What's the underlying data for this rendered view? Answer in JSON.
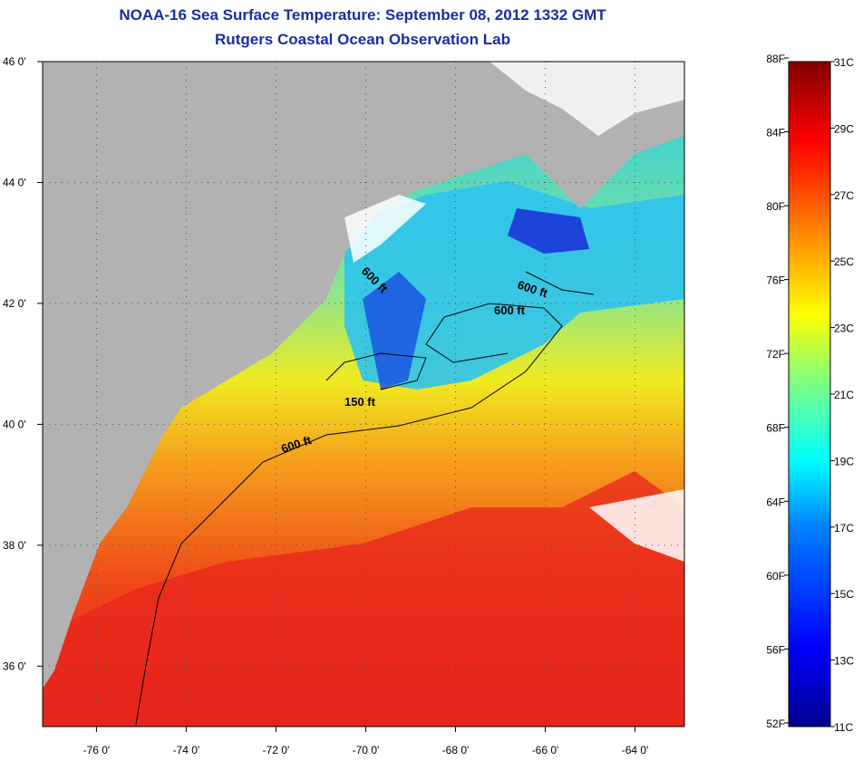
{
  "title": "NOAA-16 Sea Surface Temperature:  September 08, 2012 1332 GMT",
  "subtitle": "Rutgers Coastal Ocean Observation Lab",
  "map": {
    "lat_labels": [
      "46 0'",
      "44 0'",
      "42 0'",
      "40 0'",
      "38 0'",
      "36 0'"
    ],
    "lat_values": [
      46,
      44,
      42,
      40,
      38,
      36
    ],
    "lon_labels": [
      "-76 0'",
      "-74 0'",
      "-72 0'",
      "-70 0'",
      "-68 0'",
      "-66 0'",
      "-64 0'"
    ],
    "lon_values": [
      -76,
      -74,
      -72,
      -70,
      -68,
      -66,
      -64
    ],
    "lat_range": [
      35,
      46
    ],
    "lon_range": [
      -77.2,
      -62.9
    ],
    "contours": [
      {
        "label": "600 ft"
      },
      {
        "label": "600 ft"
      },
      {
        "label": "600 ft"
      },
      {
        "label": "150 ft"
      },
      {
        "label": "600 ft"
      }
    ],
    "colors": {
      "land": "#b2b2b2",
      "cloud": "#ffffff",
      "title": "#1a2ea0"
    }
  },
  "colorbar": {
    "fahrenheit": [
      "88F",
      "84F",
      "80F",
      "76F",
      "72F",
      "68F",
      "64F",
      "60F",
      "56F",
      "52F"
    ],
    "celsius": [
      "31C",
      "29C",
      "27C",
      "25C",
      "23C",
      "21C",
      "19C",
      "17C",
      "15C",
      "13C",
      "11C"
    ],
    "range_c": [
      11,
      31
    ]
  }
}
